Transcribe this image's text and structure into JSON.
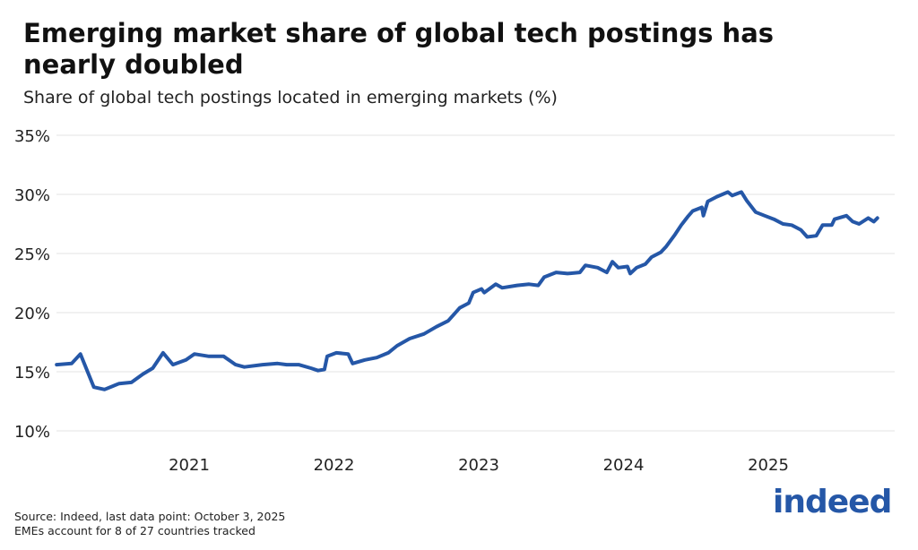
{
  "header": {
    "title": "Emerging market share of global tech postings has nearly doubled",
    "subtitle": "Share of global tech postings located in emerging markets (%)"
  },
  "footer": {
    "source": "Source: Indeed, last data point: October 3, 2025",
    "note": "EMEs account for 8 of 27 countries tracked"
  },
  "logo": {
    "text": "indeed",
    "color": "#2557a7"
  },
  "chart_data": {
    "type": "line",
    "title": "",
    "xlabel": "",
    "ylabel": "",
    "ylim": [
      10,
      35
    ],
    "yticks": [
      10,
      15,
      20,
      25,
      30,
      35
    ],
    "ytick_labels": [
      "10%",
      "15%",
      "20%",
      "25%",
      "30%",
      "35%"
    ],
    "xticks": [
      "2021-01-01",
      "2022-01-01",
      "2023-01-01",
      "2024-01-01",
      "2025-01-01"
    ],
    "xtick_labels": [
      "2021",
      "2022",
      "2023",
      "2024",
      "2025"
    ],
    "xlim": [
      "2020-02-01",
      "2025-10-03"
    ],
    "grid": "horizontal",
    "line_color": "#2557a7",
    "series": [
      {
        "x": [
          "2020-02-01",
          "2020-03-10",
          "2020-04-01",
          "2020-05-05",
          "2020-06-01",
          "2020-07-08",
          "2020-08-08",
          "2020-09-06",
          "2020-10-01",
          "2020-10-27",
          "2020-11-21",
          "2020-12-24",
          "2021-01-14",
          "2021-02-20",
          "2021-03-29",
          "2021-04-28",
          "2021-05-20",
          "2021-07-05",
          "2021-08-12",
          "2021-09-04",
          "2021-10-04",
          "2021-11-04",
          "2021-11-22",
          "2021-12-08",
          "2021-12-15",
          "2022-01-07",
          "2022-02-06",
          "2022-02-17",
          "2022-03-20",
          "2022-04-19",
          "2022-05-18",
          "2022-06-09",
          "2022-07-11",
          "2022-08-16",
          "2022-09-16",
          "2022-10-16",
          "2022-11-14",
          "2022-12-07",
          "2022-12-18",
          "2023-01-08",
          "2023-01-15",
          "2023-02-13",
          "2023-03-01",
          "2023-04-08",
          "2023-05-08",
          "2023-05-31",
          "2023-06-15",
          "2023-07-15",
          "2023-08-13",
          "2023-09-13",
          "2023-09-27",
          "2023-10-28",
          "2023-11-20",
          "2023-12-04",
          "2023-12-19",
          "2024-01-11",
          "2024-01-18",
          "2024-02-03",
          "2024-02-25",
          "2024-03-12",
          "2024-04-04",
          "2024-04-18",
          "2024-05-10",
          "2024-05-26",
          "2024-06-11",
          "2024-06-24",
          "2024-07-17",
          "2024-07-21",
          "2024-08-01",
          "2024-08-24",
          "2024-09-21",
          "2024-10-02",
          "2024-10-25",
          "2024-11-07",
          "2024-11-30",
          "2024-12-23",
          "2025-01-15",
          "2025-02-07",
          "2025-03-01",
          "2025-03-24",
          "2025-04-09",
          "2025-05-02",
          "2025-05-18",
          "2025-06-10",
          "2025-06-17",
          "2025-07-17",
          "2025-08-02",
          "2025-08-18",
          "2025-09-10",
          "2025-09-24",
          "2025-10-03"
        ],
        "y": [
          15.6,
          15.7,
          16.5,
          13.7,
          13.5,
          14.0,
          14.1,
          14.8,
          15.3,
          16.6,
          15.6,
          16.0,
          16.5,
          16.3,
          16.3,
          15.6,
          15.4,
          15.6,
          15.7,
          15.6,
          15.6,
          15.3,
          15.1,
          15.2,
          16.3,
          16.6,
          16.5,
          15.7,
          16.0,
          16.2,
          16.6,
          17.2,
          17.8,
          18.2,
          18.8,
          19.3,
          20.4,
          20.8,
          21.7,
          22.0,
          21.7,
          22.4,
          22.1,
          22.3,
          22.4,
          22.3,
          23.0,
          23.4,
          23.3,
          23.4,
          24.0,
          23.8,
          23.4,
          24.3,
          23.8,
          23.9,
          23.3,
          23.8,
          24.1,
          24.7,
          25.1,
          25.6,
          26.6,
          27.4,
          28.1,
          28.6,
          28.9,
          28.2,
          29.4,
          29.8,
          30.2,
          29.9,
          30.2,
          29.5,
          28.5,
          28.2,
          27.9,
          27.5,
          27.4,
          27.0,
          26.4,
          26.5,
          27.4,
          27.4,
          27.9,
          28.2,
          27.7,
          27.5,
          28.0,
          27.7,
          28.0
        ]
      }
    ]
  }
}
